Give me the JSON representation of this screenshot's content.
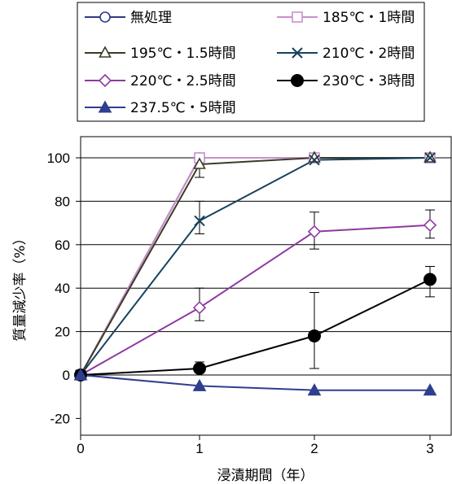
{
  "chart_data": {
    "type": "line",
    "title": "",
    "xlabel": "浸漬期間（年）",
    "ylabel": "質量減少率（%）",
    "x": [
      0,
      1,
      2,
      3
    ],
    "xticks": [
      "0",
      "1",
      "2",
      "3"
    ],
    "yticks": [
      "-20",
      "0",
      "20",
      "40",
      "60",
      "80",
      "100"
    ],
    "xlim": [
      0,
      3
    ],
    "ylim": [
      -20,
      110
    ],
    "grid": "horizontal",
    "legend_position": "top",
    "series": [
      {
        "name": "無処理",
        "values": [
          0,
          100,
          100,
          100
        ],
        "color": "#2e3a87",
        "marker": "circle-open",
        "errors": [
          null,
          null,
          null,
          null
        ]
      },
      {
        "name": "185℃・1時間",
        "values": [
          0,
          100,
          100,
          100
        ],
        "color": "#c98fcc",
        "marker": "square-open",
        "errors": [
          null,
          null,
          null,
          null
        ]
      },
      {
        "name": "195℃・1.5時間",
        "values": [
          0,
          97,
          100,
          100
        ],
        "color": "#3b3b26",
        "marker": "triangle-open",
        "errors": [
          null,
          [
            91,
            100
          ],
          null,
          null
        ]
      },
      {
        "name": "210℃・2時間",
        "values": [
          0,
          71,
          99,
          100
        ],
        "color": "#17425e",
        "marker": "x",
        "errors": [
          null,
          [
            65,
            80
          ],
          null,
          null
        ]
      },
      {
        "name": "220℃・2.5時間",
        "values": [
          0,
          31,
          66,
          69
        ],
        "color": "#8e3a9e",
        "marker": "diamond-open",
        "errors": [
          null,
          [
            25,
            40
          ],
          [
            58,
            75
          ],
          [
            63,
            76
          ]
        ]
      },
      {
        "name": "230℃・3時間",
        "values": [
          0,
          3,
          18,
          44
        ],
        "color": "#000000",
        "marker": "circle-filled",
        "errors": [
          null,
          [
            1,
            6
          ],
          [
            3,
            38
          ],
          [
            36,
            50
          ]
        ]
      },
      {
        "name": "237.5℃・5時間",
        "values": [
          0,
          -5,
          -7,
          -7
        ],
        "color": "#2f3e8f",
        "marker": "triangle-filled",
        "errors": [
          null,
          null,
          null,
          null
        ]
      }
    ]
  }
}
